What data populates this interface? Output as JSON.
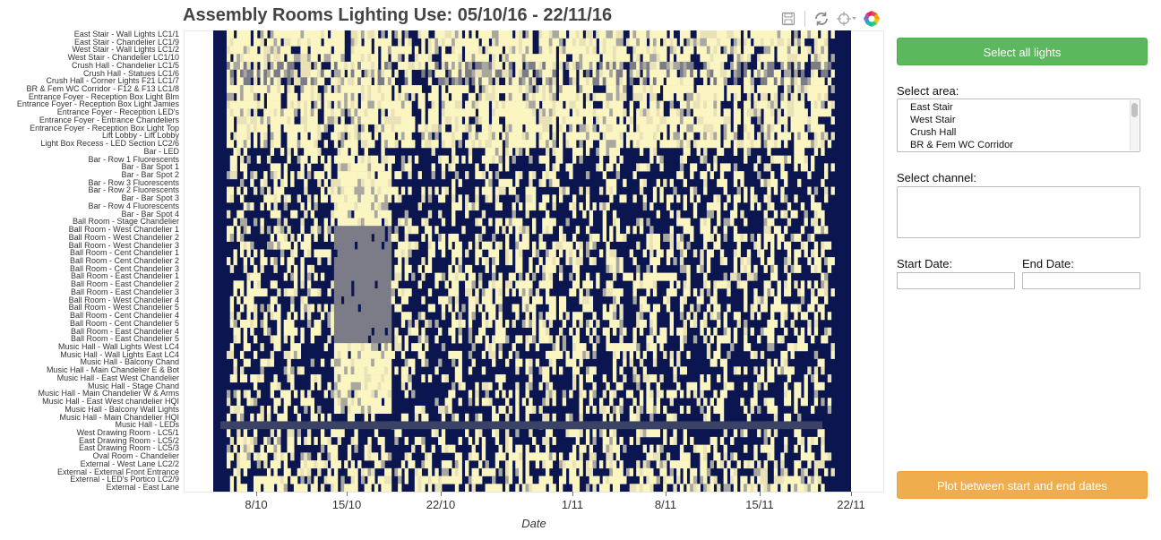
{
  "title": "Assembly Rooms Lighting Use: 05/10/16 - 22/11/16",
  "toolbar": {
    "icons": [
      "save-icon",
      "reset-icon",
      "crosshair-icon",
      "bokeh-logo-icon"
    ]
  },
  "colors": {
    "off": "#0b1650",
    "on": "#fbf5c2",
    "partial_dark": "#7c7c88",
    "partial_mid": "#a8a8a0",
    "partial_light": "#e9e2b8",
    "green_button": "#5cb85c",
    "orange_button": "#f0ad4e"
  },
  "chart_data": {
    "type": "heatmap",
    "title": "Assembly Rooms Lighting Use: 05/10/16 - 22/11/16",
    "xlabel": "Date",
    "ylabel": "",
    "x_ticks": [
      "8/10",
      "15/10",
      "22/10",
      "1/11",
      "8/11",
      "15/11",
      "22/11"
    ],
    "x_range": [
      "05/10/16",
      "22/11/16"
    ],
    "legend": "none",
    "channels": [
      "East Stair - Wall Lights LC1/1",
      "East Stair - Chandelier LC1/9",
      "West Stair - Wall Lights LC1/2",
      "West Stair - Chandelier LC1/10",
      "Crush Hall - Chandelier LC1/5",
      "Crush Hall - Statues LC1/6",
      "Crush Hall - Corner Lights F21 LC1/7",
      "BR & Fem WC Corridor - F12 & F13 LC1/8",
      "Entrance Foyer - Reception Box Light Blm",
      "Entrance Foyer - Reception Box Light Jamies",
      "Entrance Foyer - Reception LED's",
      "Entrance Foyer - Entrance Chandeliers",
      "Entrance Foyer - Reception Box Light Top",
      "Lift Lobby - Lift Lobby",
      "Light Box Recess - LED Section LC2/6",
      "Bar - LED",
      "Bar - Row 1 Fluorescents",
      "Bar - Bar Spot 1",
      "Bar - Bar Spot 2",
      "Bar - Row 3 Fluorescents",
      "Bar - Row 2 Fluorescents",
      "Bar - Bar Spot 3",
      "Bar - Row 4 Fluorescents",
      "Bar - Bar Spot 4",
      "Ball Room - Stage Chandelier",
      "Ball Room - West Chandelier 1",
      "Ball Room - West Chandelier 2",
      "Ball Room - West Chandelier 3",
      "Ball Room - Cent Chandelier 1",
      "Ball Room - Cent Chandelier 2",
      "Ball Room - Cent Chandelier 3",
      "Ball Room - East Chandelier 1",
      "Ball Room - East Chandelier 2",
      "Ball Room - East Chandelier 3",
      "Ball Room - West Chandelier 4",
      "Ball Room - West Chandelier 5",
      "Ball Room - Cent Chandelier 4",
      "Ball Room - Cent Chandelier 5",
      "Ball Room - East Chandelier 4",
      "Ball Room - East Chandelier 5",
      "Music Hall - Wall Lights West LC4",
      "Music Hall - Wall Lights East LC4",
      "Music Hall - Balcony Chand",
      "Music Hall - Main Chandelier E & Bot",
      "Music Hall - East West Chandelier",
      "Music Hall - Stage Chand",
      "Music Hall - Main Chandelier W & Arms",
      "Music Hall - East West chandelier HQI",
      "Music Hall - Balcony Wall Lights",
      "Music Hall - Main Chandelier HQI",
      "Music Hall - LEDs",
      "West Drawing Room - LC5/1",
      "East Drawing Room - LC5/2",
      "East Drawing Room - LC5/3",
      "Oval Room - Chandelier",
      "External - West Lane LC2/2",
      "External - External Front Entrance",
      "External - LED's Portico LC2/9",
      "External - East Lane"
    ]
  },
  "sidebar": {
    "select_all_label": "Select all lights",
    "area_label": "Select area:",
    "areas": [
      "East Stair",
      "West Stair",
      "Crush Hall",
      "BR & Fem WC Corridor"
    ],
    "channel_label": "Select channel:",
    "start_label": "Start Date:",
    "end_label": "End Date:",
    "start_value": "",
    "end_value": "",
    "plot_button_label": "Plot between start and end dates"
  }
}
